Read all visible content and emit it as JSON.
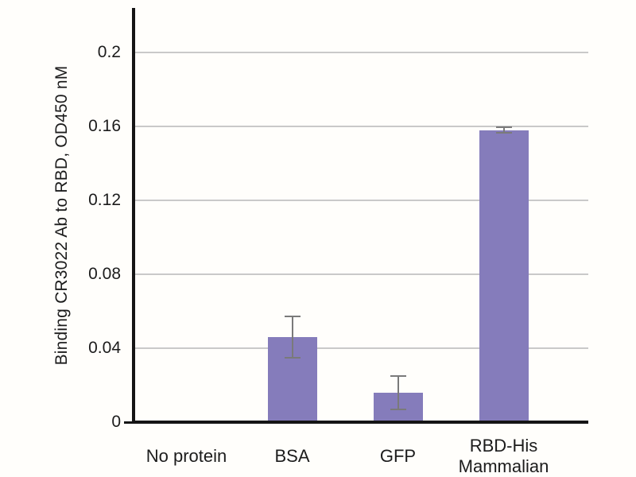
{
  "chart_data": {
    "type": "bar",
    "title": "",
    "xlabel": "",
    "ylabel": "Binding CR3022 Ab to RBD, OD450 nM",
    "categories": [
      "No protein",
      "BSA",
      "GFP",
      "RBD-His\nMammalian"
    ],
    "values": [
      0,
      0.046,
      0.016,
      0.158
    ],
    "error_bars": [
      0,
      0.011,
      0.009,
      0.0015
    ],
    "ylim": [
      0,
      0.224
    ],
    "yticks": [
      0,
      0.04,
      0.08,
      0.12,
      0.16,
      0.2
    ],
    "ytick_labels": [
      "0",
      "0.04",
      "0.08",
      "0.12",
      "0.16",
      "0.2"
    ],
    "grid": true,
    "legend": false,
    "colors": {
      "bar": "#857CBB",
      "error_bar": "#7a7a7a",
      "gridline": "#c9c9c9",
      "axis": "#151515",
      "text": "#1c1c1c",
      "background": "#fffefb"
    }
  }
}
